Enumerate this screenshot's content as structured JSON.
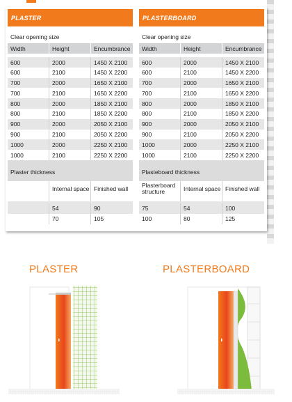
{
  "plaster_panel": {
    "title": "PLASTER",
    "opening_label": "Clear opening size",
    "headers": [
      "Width",
      "Height",
      "Encumbrance"
    ],
    "rows": [
      [
        "600",
        "2000",
        "1450 X 2100"
      ],
      [
        "600",
        "2100",
        "1450 X 2200"
      ],
      [
        "700",
        "2000",
        "1650 X 2100"
      ],
      [
        "700",
        "2100",
        "1650 X 2200"
      ],
      [
        "800",
        "2000",
        "1850 X 2100"
      ],
      [
        "800",
        "2100",
        "1850 X 2200"
      ],
      [
        "900",
        "2000",
        "2050 X 2100"
      ],
      [
        "900",
        "2100",
        "2050 X 2200"
      ],
      [
        "1000",
        "2000",
        "2250 X 2100"
      ],
      [
        "1000",
        "2100",
        "2250 X 2200"
      ]
    ],
    "thickness_label": "Plaster thickness",
    "thickness_headers": [
      "",
      "Internal space",
      "Finished wall"
    ],
    "thickness_rows": [
      [
        "",
        "54",
        "90"
      ],
      [
        "",
        "70",
        "105"
      ]
    ]
  },
  "plasterboard_panel": {
    "title": "PLASTERBOARD",
    "opening_label": "Clear opening size",
    "headers": [
      "Width",
      "Height",
      "Encumbrance"
    ],
    "rows": [
      [
        "600",
        "2000",
        "1450 X 2100"
      ],
      [
        "600",
        "2100",
        "1450 X 2200"
      ],
      [
        "700",
        "2000",
        "1650 X 2100"
      ],
      [
        "700",
        "2100",
        "1650 X 2200"
      ],
      [
        "800",
        "2000",
        "1850 X 2100"
      ],
      [
        "800",
        "2100",
        "1850 X 2200"
      ],
      [
        "900",
        "2000",
        "2050 X 2100"
      ],
      [
        "900",
        "2100",
        "2050 X 2200"
      ],
      [
        "1000",
        "2000",
        "2250 X 2100"
      ],
      [
        "1000",
        "2100",
        "2250 X 2200"
      ]
    ],
    "thickness_label": "Plasteboard thickness",
    "thickness_headers": [
      "Plasterboard structure",
      "Internal space",
      "Finished wall"
    ],
    "thickness_rows": [
      [
        "75",
        "54",
        "100"
      ],
      [
        "100",
        "80",
        "125"
      ]
    ]
  },
  "captions": {
    "plaster": "PLASTER",
    "plasterboard": "PLASTERBOARD"
  },
  "colors": {
    "accent": "#f07a1c",
    "header_gray": "#d2d4d6",
    "row_alt": "#e6e6e6",
    "mesh_green": "#7dbb3c"
  }
}
